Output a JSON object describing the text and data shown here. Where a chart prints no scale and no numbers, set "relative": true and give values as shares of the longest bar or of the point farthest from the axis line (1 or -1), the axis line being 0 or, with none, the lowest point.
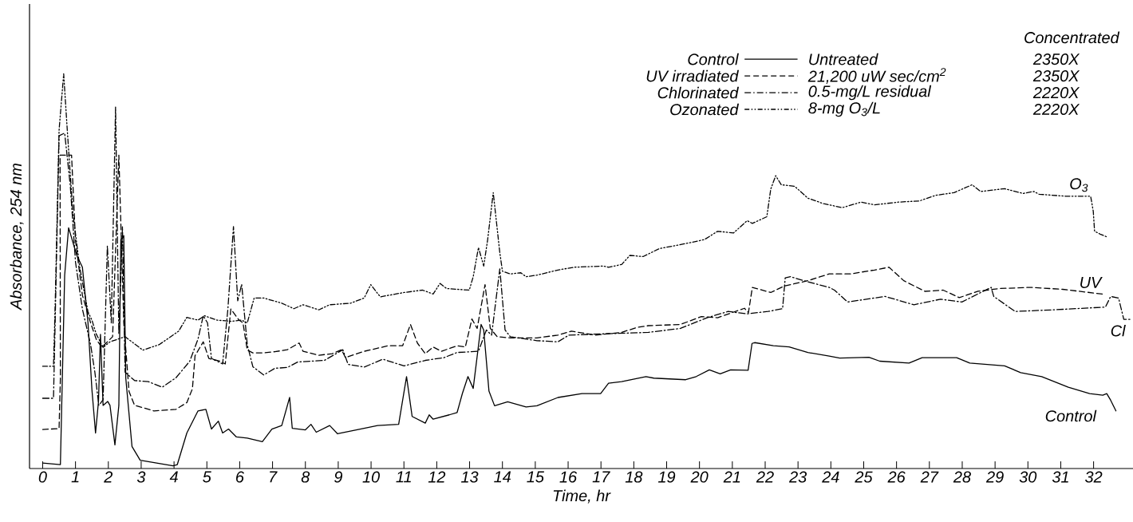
{
  "chart_data": {
    "type": "line",
    "relative": true,
    "xlabel": "Time, hr",
    "ylabel": "Absorbance, 254 nm",
    "legend": "top right",
    "legend_title": "Concentrated",
    "xlim": [
      -0.4,
      33.2
    ],
    "xticks": [
      0,
      1,
      2,
      3,
      4,
      5,
      6,
      7,
      8,
      9,
      10,
      11,
      12,
      13,
      14,
      15,
      16,
      17,
      18,
      19,
      20,
      21,
      22,
      23,
      24,
      25,
      26,
      27,
      28,
      29,
      30,
      31,
      32
    ],
    "series": [
      {
        "name": "Control",
        "color": "#000000",
        "line_style": "solid",
        "x": [
          0,
          0.54,
          0.67,
          0.79,
          1.04,
          1.21,
          1.38,
          1.5,
          1.61,
          1.7,
          1.76,
          1.84,
          1.98,
          2.05,
          2.2,
          2.32,
          2.38,
          2.47,
          2.53,
          2.72,
          2.97,
          3.97,
          4.1,
          4.39,
          4.73,
          4.97,
          5.14,
          5.35,
          5.48,
          5.66,
          5.9,
          6.23,
          6.69,
          6.98,
          7.28,
          7.52,
          7.6,
          8.0,
          8.17,
          8.33,
          8.74,
          8.98,
          9.55,
          10.2,
          10.84,
          11.08,
          11.25,
          11.65,
          11.77,
          11.89,
          12.38,
          12.62,
          12.78,
          12.95,
          13.11,
          13.35,
          13.43,
          13.59,
          13.76,
          14.16,
          14.72,
          15.05,
          15.69,
          16.42,
          16.99,
          17.23,
          17.63,
          18.37,
          18.61,
          19.58,
          19.9,
          20.3,
          20.63,
          20.95,
          21.48,
          21.6,
          21.68,
          22.25,
          22.73,
          23.3,
          23.95,
          24.27,
          25.16,
          25.49,
          26.38,
          26.78,
          27.83,
          28.23,
          29.29,
          29.78,
          30.42,
          31.23,
          31.88,
          32.28,
          32.4,
          32.52,
          32.68
        ],
        "values": [
          0.014,
          0.01,
          0.49,
          0.61,
          0.54,
          0.51,
          0.37,
          0.2,
          0.09,
          0.17,
          0.34,
          0.16,
          0.17,
          0.16,
          0.06,
          0.16,
          0.58,
          0.59,
          0.23,
          0.056,
          0.021,
          0.007,
          0.01,
          0.09,
          0.146,
          0.15,
          0.1,
          0.12,
          0.09,
          0.1,
          0.08,
          0.077,
          0.068,
          0.1,
          0.109,
          0.18,
          0.102,
          0.098,
          0.112,
          0.092,
          0.109,
          0.088,
          0.098,
          0.109,
          0.112,
          0.233,
          0.132,
          0.115,
          0.136,
          0.125,
          0.136,
          0.142,
          0.19,
          0.233,
          0.203,
          0.365,
          0.351,
          0.196,
          0.159,
          0.169,
          0.156,
          0.159,
          0.18,
          0.19,
          0.19,
          0.216,
          0.22,
          0.233,
          0.229,
          0.225,
          0.233,
          0.25,
          0.24,
          0.25,
          0.249,
          0.317,
          0.319,
          0.311,
          0.308,
          0.294,
          0.285,
          0.28,
          0.282,
          0.272,
          0.267,
          0.281,
          0.281,
          0.267,
          0.26,
          0.243,
          0.233,
          0.206,
          0.19,
          0.186,
          0.19,
          0.173,
          0.146
        ]
      },
      {
        "name": "UV irradiated",
        "color": "#000000",
        "line_style": "dashed",
        "x": [
          0,
          0.5,
          0.54,
          0.53,
          0.71,
          0.88,
          1.0,
          1.21,
          1.46,
          1.63,
          1.8,
          2.13,
          2.32,
          2.47,
          2.63,
          2.8,
          3.39,
          4.06,
          4.39,
          4.56,
          4.64,
          4.89,
          5.06,
          5.39,
          5.56,
          5.73,
          5.98,
          6.1,
          6.23,
          6.4,
          6.73,
          7.07,
          7.45,
          7.81,
          7.93,
          8.41,
          8.82,
          9.1,
          9.22,
          9.79,
          10.52,
          10.96,
          11.2,
          11.41,
          11.65,
          11.89,
          12.14,
          12.62,
          12.87,
          13.07,
          13.23,
          13.47,
          13.63,
          13.84,
          14.24,
          15.05,
          15.69,
          16.1,
          16.83,
          17.63,
          18.12,
          18.45,
          19.42,
          20.06,
          20.55,
          21.37,
          21.49,
          21.61,
          22.17,
          22.57,
          23.3,
          23.95,
          24.59,
          25.33,
          25.77,
          26.22,
          26.86,
          27.42,
          27.91,
          28.48,
          29.12,
          30.09,
          31.06,
          32.28
        ],
        "values": [
          0.099,
          0.101,
          0.23,
          0.794,
          0.794,
          0.794,
          0.578,
          0.439,
          0.369,
          0.328,
          0.307,
          0.334,
          0.794,
          0.369,
          0.195,
          0.16,
          0.146,
          0.15,
          0.167,
          0.202,
          0.286,
          0.321,
          0.279,
          0.272,
          0.265,
          0.404,
          0.376,
          0.369,
          0.3,
          0.293,
          0.293,
          0.296,
          0.301,
          0.318,
          0.297,
          0.287,
          0.291,
          0.301,
          0.281,
          0.297,
          0.311,
          0.311,
          0.365,
          0.318,
          0.291,
          0.308,
          0.297,
          0.311,
          0.308,
          0.379,
          0.355,
          0.466,
          0.355,
          0.334,
          0.331,
          0.331,
          0.338,
          0.348,
          0.338,
          0.345,
          0.358,
          0.362,
          0.365,
          0.385,
          0.382,
          0.406,
          0.395,
          0.459,
          0.446,
          0.462,
          0.476,
          0.493,
          0.493,
          0.503,
          0.51,
          0.476,
          0.449,
          0.452,
          0.433,
          0.449,
          0.456,
          0.459,
          0.454,
          0.442
        ]
      },
      {
        "name": "Chlorinated",
        "color": "#000000",
        "line_style": "dashdotted",
        "x": [
          0,
          0.33,
          0.38,
          0.5,
          0.67,
          0.84,
          1.0,
          1.21,
          1.46,
          1.59,
          1.71,
          1.84,
          1.97,
          2.09,
          2.22,
          2.32,
          2.43,
          2.51,
          2.8,
          3.22,
          3.64,
          4.06,
          4.48,
          4.73,
          4.89,
          5.02,
          5.14,
          5.48,
          5.64,
          5.81,
          5.94,
          6.06,
          6.23,
          6.4,
          6.73,
          7.07,
          7.45,
          7.77,
          8.58,
          9.14,
          9.3,
          9.79,
          10.36,
          11.0,
          11.65,
          12.22,
          12.62,
          13.27,
          13.51,
          13.67,
          13.92,
          14.08,
          14.24,
          15.05,
          15.69,
          16.02,
          17.0,
          18.45,
          19.42,
          20.23,
          20.87,
          21.44,
          22.09,
          22.53,
          22.61,
          22.77,
          23.3,
          23.95,
          24.11,
          24.51,
          25.65,
          26.53,
          27.34,
          27.99,
          28.88,
          28.96,
          29.61,
          30.74,
          32.36,
          32.52,
          32.76,
          32.92,
          33.16
        ],
        "values": [
          0.178,
          0.178,
          0.369,
          0.843,
          0.85,
          0.718,
          0.523,
          0.404,
          0.314,
          0.244,
          0.16,
          0.174,
          0.564,
          0.369,
          0.916,
          0.341,
          0.613,
          0.244,
          0.223,
          0.22,
          0.206,
          0.23,
          0.272,
          0.328,
          0.387,
          0.369,
          0.279,
          0.265,
          0.404,
          0.613,
          0.425,
          0.467,
          0.314,
          0.258,
          0.237,
          0.254,
          0.256,
          0.27,
          0.274,
          0.301,
          0.264,
          0.257,
          0.277,
          0.26,
          0.274,
          0.281,
          0.294,
          0.297,
          0.351,
          0.338,
          0.506,
          0.351,
          0.334,
          0.324,
          0.321,
          0.338,
          0.341,
          0.345,
          0.355,
          0.382,
          0.398,
          0.392,
          0.398,
          0.405,
          0.483,
          0.486,
          0.473,
          0.459,
          0.452,
          0.422,
          0.436,
          0.415,
          0.429,
          0.422,
          0.459,
          0.436,
          0.398,
          0.402,
          0.409,
          0.436,
          0.432,
          0.378,
          0.378
        ]
      },
      {
        "name": "Ozonated",
        "color": "#000000",
        "line_style": "dashdotdotted",
        "x": [
          0,
          0.33,
          0.38,
          0.5,
          0.64,
          0.75,
          0.92,
          1.13,
          1.38,
          1.5,
          1.63,
          1.84,
          2.05,
          2.51,
          3.05,
          3.55,
          4.14,
          4.39,
          4.73,
          4.93,
          5.31,
          5.73,
          6.06,
          6.23,
          6.44,
          6.73,
          7.28,
          7.65,
          7.93,
          8.41,
          8.74,
          9.38,
          9.79,
          9.99,
          10.28,
          11.0,
          11.57,
          11.89,
          12.1,
          12.3,
          12.99,
          13.11,
          13.27,
          13.43,
          13.55,
          13.72,
          13.92,
          14.0,
          14.24,
          14.56,
          14.72,
          15.05,
          15.69,
          16.18,
          17.07,
          17.23,
          17.63,
          17.88,
          18.28,
          18.77,
          19.58,
          20.15,
          20.55,
          21.04,
          21.45,
          21.61,
          22.05,
          22.17,
          22.32,
          22.49,
          22.9,
          23.3,
          23.78,
          24.35,
          24.92,
          25.33,
          26.05,
          26.7,
          27.18,
          27.75,
          28.3,
          28.56,
          29.29,
          29.85,
          30.18,
          30.34,
          31.15,
          31.91,
          31.99,
          32.03,
          32.2,
          32.4
        ],
        "values": [
          0.259,
          0.259,
          0.41,
          0.857,
          1,
          0.857,
          0.648,
          0.509,
          0.397,
          0.376,
          0.341,
          0.307,
          0.321,
          0.334,
          0.3,
          0.314,
          0.348,
          0.383,
          0.376,
          0.387,
          0.376,
          0.373,
          0.376,
          0.369,
          0.432,
          0.432,
          0.419,
          0.405,
          0.415,
          0.402,
          0.415,
          0.419,
          0.432,
          0.466,
          0.435,
          0.446,
          0.452,
          0.442,
          0.469,
          0.456,
          0.452,
          0.486,
          0.56,
          0.513,
          0.58,
          0.699,
          0.547,
          0.5,
          0.493,
          0.496,
          0.486,
          0.49,
          0.503,
          0.51,
          0.513,
          0.51,
          0.517,
          0.54,
          0.537,
          0.557,
          0.57,
          0.58,
          0.601,
          0.597,
          0.628,
          0.621,
          0.638,
          0.708,
          0.742,
          0.719,
          0.715,
          0.685,
          0.671,
          0.661,
          0.675,
          0.668,
          0.675,
          0.678,
          0.692,
          0.699,
          0.719,
          0.702,
          0.709,
          0.697,
          0.702,
          0.695,
          0.69,
          0.69,
          0.652,
          0.601,
          0.594,
          0.587
        ]
      }
    ],
    "annotations": [
      "Untreated",
      "21,200 uW sec/cm$^{2}$",
      "0.5-mg/L residual",
      "8-mg O$_{3}$/L",
      "2350X",
      "2350X",
      "2220X",
      "2220X",
      {
        "text": "O$_{3}$",
        "x": 31.55,
        "y": 0.69
      },
      {
        "text": "UV",
        "x": 31.9,
        "y": 0.446
      },
      {
        "text": "Cl",
        "x": 32.74,
        "y": 0.432
      },
      {
        "text": "Control",
        "x": 31.3,
        "y": 0.204
      }
    ]
  }
}
